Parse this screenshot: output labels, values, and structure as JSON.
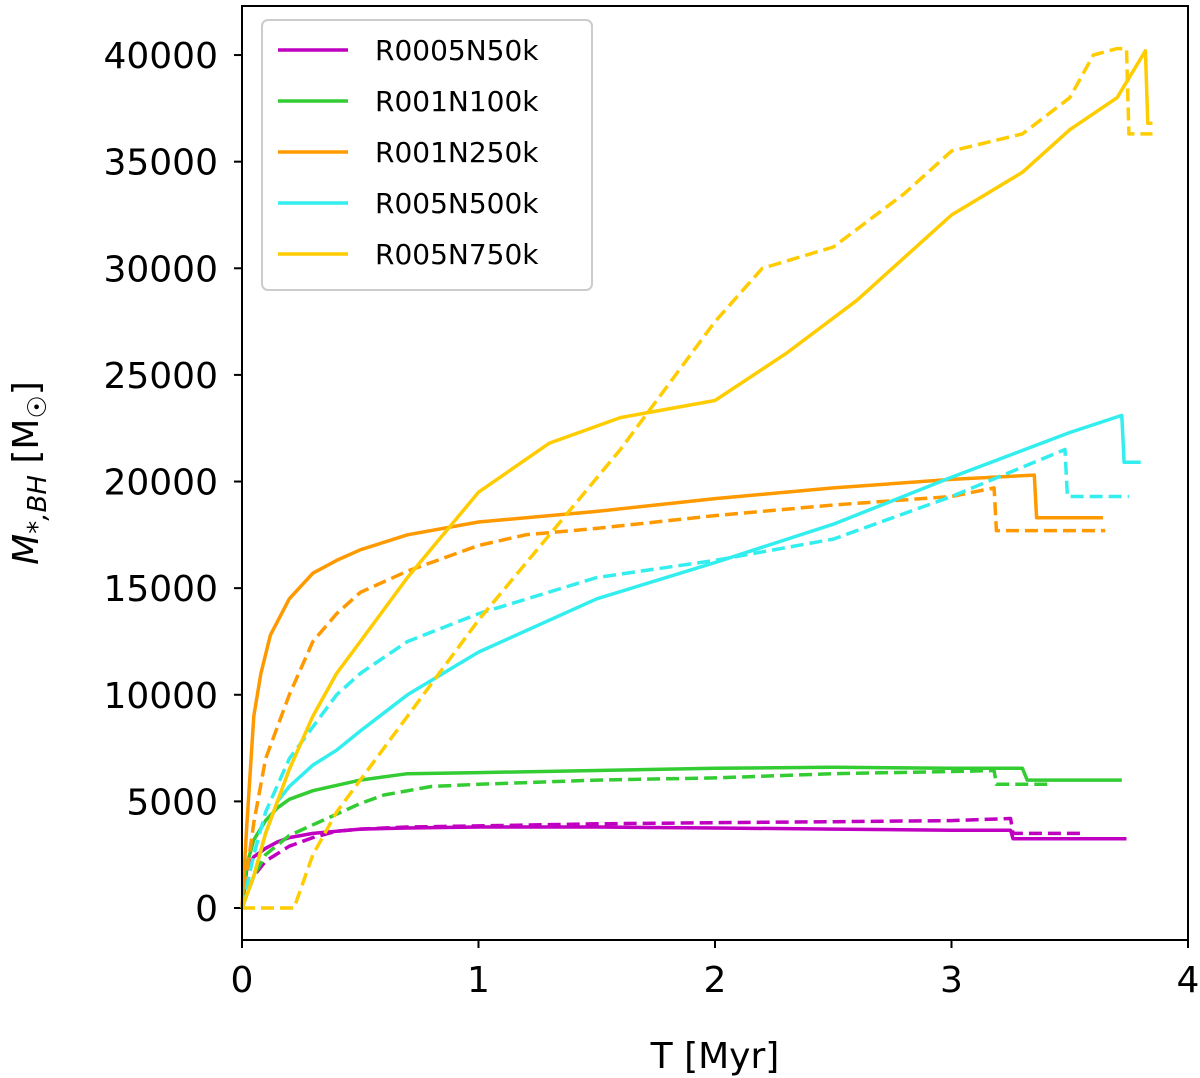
{
  "chart_data": {
    "type": "line",
    "title": "",
    "xlabel": "T [Myr]",
    "ylabel_main": "M",
    "ylabel_sub": "*,BH",
    "ylabel_unit_open": " [M",
    "ylabel_unit_sub": "☉",
    "ylabel_unit_close": "]",
    "xlim": [
      0,
      4
    ],
    "ylim": [
      -1500,
      42300
    ],
    "xticks": [
      0,
      1,
      2,
      3,
      4
    ],
    "yticks": [
      0,
      5000,
      10000,
      15000,
      20000,
      25000,
      30000,
      35000,
      40000
    ],
    "legend_position": "top-left",
    "series": [
      {
        "name": "R0005N50k",
        "color": "#c000c0",
        "style": "solid",
        "x": [
          0,
          0.02,
          0.05,
          0.1,
          0.15,
          0.2,
          0.3,
          0.5,
          0.7,
          1.0,
          1.5,
          2.0,
          2.5,
          3.0,
          3.25,
          3.26,
          3.74
        ],
        "y": [
          0,
          1800,
          2400,
          2800,
          3100,
          3300,
          3500,
          3700,
          3750,
          3800,
          3800,
          3750,
          3700,
          3650,
          3650,
          3250,
          3250
        ]
      },
      {
        "name": "R0005N50k dashed",
        "color": "#c000c0",
        "style": "dashed",
        "legend": false,
        "x": [
          0,
          0.05,
          0.1,
          0.2,
          0.3,
          0.4,
          0.5,
          0.7,
          1.0,
          1.5,
          2.0,
          2.5,
          3.0,
          3.25,
          3.26,
          3.55
        ],
        "y": [
          0,
          1500,
          2200,
          2900,
          3300,
          3600,
          3700,
          3800,
          3850,
          3950,
          4000,
          4050,
          4100,
          4200,
          3500,
          3500
        ]
      },
      {
        "name": "R001N100k",
        "color": "#33cc33",
        "style": "solid",
        "x": [
          0,
          0.02,
          0.05,
          0.1,
          0.15,
          0.2,
          0.3,
          0.5,
          0.7,
          1.0,
          1.5,
          2.0,
          2.5,
          3.0,
          3.3,
          3.32,
          3.72
        ],
        "y": [
          0,
          2000,
          3200,
          4100,
          4700,
          5100,
          5500,
          6000,
          6300,
          6350,
          6450,
          6550,
          6600,
          6550,
          6550,
          6000,
          6000
        ]
      },
      {
        "name": "R001N100k dashed",
        "color": "#33cc33",
        "style": "dashed",
        "legend": false,
        "x": [
          0,
          0.05,
          0.1,
          0.2,
          0.3,
          0.4,
          0.5,
          0.6,
          0.8,
          1.0,
          1.5,
          2.0,
          2.5,
          3.0,
          3.18,
          3.19,
          3.42
        ],
        "y": [
          0,
          1500,
          2500,
          3400,
          3900,
          4400,
          4900,
          5300,
          5700,
          5800,
          6000,
          6100,
          6300,
          6400,
          6450,
          5800,
          5800
        ]
      },
      {
        "name": "R001N250k",
        "color": "#ff9900",
        "style": "solid",
        "x": [
          0,
          0.02,
          0.05,
          0.08,
          0.12,
          0.2,
          0.3,
          0.4,
          0.5,
          0.7,
          1.0,
          1.5,
          2.0,
          2.5,
          3.0,
          3.35,
          3.36,
          3.64
        ],
        "y": [
          0,
          3800,
          9000,
          11000,
          12800,
          14500,
          15700,
          16300,
          16800,
          17500,
          18100,
          18600,
          19200,
          19700,
          20100,
          20300,
          18300,
          18300
        ]
      },
      {
        "name": "R001N250k dashed",
        "color": "#ff9900",
        "style": "dashed",
        "legend": false,
        "x": [
          0,
          0.05,
          0.1,
          0.2,
          0.3,
          0.4,
          0.5,
          0.7,
          1.0,
          1.2,
          1.5,
          2.0,
          2.5,
          3.0,
          3.18,
          3.19,
          3.65
        ],
        "y": [
          0,
          4000,
          7000,
          10000,
          12500,
          13800,
          14800,
          15800,
          17000,
          17500,
          17800,
          18400,
          18900,
          19300,
          19700,
          17700,
          17700
        ]
      },
      {
        "name": "R005N500k",
        "color": "#33eeee",
        "style": "solid",
        "x": [
          0,
          0.05,
          0.1,
          0.15,
          0.2,
          0.3,
          0.4,
          0.5,
          0.7,
          1.0,
          1.5,
          2.0,
          2.5,
          3.0,
          3.5,
          3.72,
          3.73,
          3.8
        ],
        "y": [
          0,
          1500,
          3500,
          5000,
          5700,
          6700,
          7400,
          8300,
          10000,
          12000,
          14500,
          16200,
          18000,
          20200,
          22300,
          23100,
          20900,
          20900
        ]
      },
      {
        "name": "R005N500k dashed",
        "color": "#33eeee",
        "style": "dashed",
        "legend": false,
        "x": [
          0,
          0.05,
          0.1,
          0.2,
          0.3,
          0.4,
          0.5,
          0.7,
          1.0,
          1.5,
          2.0,
          2.5,
          3.0,
          3.48,
          3.49,
          3.75
        ],
        "y": [
          0,
          2500,
          4500,
          7000,
          8500,
          10000,
          11000,
          12500,
          13800,
          15500,
          16300,
          17300,
          19300,
          21500,
          19300,
          19300
        ]
      },
      {
        "name": "R005N750k",
        "color": "#ffcc00",
        "style": "solid",
        "x": [
          0,
          0.05,
          0.1,
          0.2,
          0.3,
          0.4,
          0.5,
          0.7,
          1.0,
          1.3,
          1.6,
          2.0,
          2.3,
          2.6,
          3.0,
          3.3,
          3.5,
          3.7,
          3.82,
          3.83,
          3.85
        ],
        "y": [
          0,
          1500,
          3500,
          6500,
          9000,
          11000,
          12500,
          15500,
          19500,
          21800,
          23000,
          23800,
          26000,
          28500,
          32500,
          34500,
          36500,
          38000,
          40200,
          36800,
          36800
        ]
      },
      {
        "name": "R005N750k dashed",
        "color": "#ffcc00",
        "style": "dashed",
        "legend": false,
        "x": [
          0,
          0.22,
          0.3,
          0.4,
          0.5,
          0.6,
          0.8,
          1.0,
          1.3,
          1.6,
          1.8,
          2.0,
          2.2,
          2.5,
          2.8,
          3.0,
          3.3,
          3.5,
          3.6,
          3.7,
          3.74,
          3.75,
          3.85
        ],
        "y": [
          0,
          0,
          2500,
          4500,
          6000,
          7500,
          10500,
          13500,
          17500,
          21500,
          24500,
          27500,
          30000,
          31000,
          33500,
          35500,
          36300,
          38000,
          40000,
          40300,
          40300,
          36300,
          36300
        ]
      }
    ]
  }
}
